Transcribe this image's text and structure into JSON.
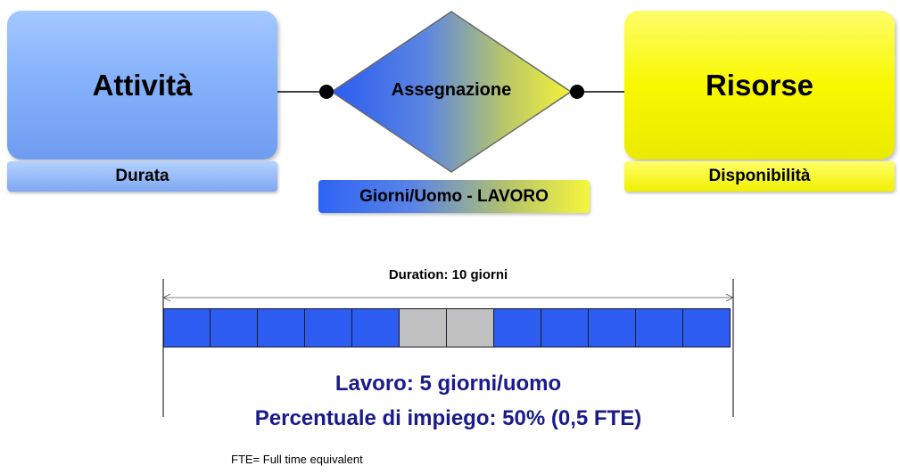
{
  "diagram": {
    "left_entity": {
      "title": "Attività",
      "attribute": "Durata"
    },
    "relationship": {
      "title": "Assegnazione",
      "attribute": "Giorni/Uomo - LAVORO"
    },
    "right_entity": {
      "title": "Risorse",
      "attribute": "Disponibilità"
    }
  },
  "timeline": {
    "duration_label": "Duration: 10 giorni",
    "cells": [
      "work",
      "work",
      "work",
      "work",
      "work",
      "off",
      "off",
      "work",
      "work",
      "work",
      "work",
      "work"
    ],
    "colors": {
      "work": "#2c5cf0",
      "off": "#c0c0c0"
    },
    "work_label": "Lavoro: 5 giorni/uomo",
    "percent_label": "Percentuale di impiego: 50% (0,5 FTE)",
    "footnote": "FTE= Full time equivalent"
  }
}
